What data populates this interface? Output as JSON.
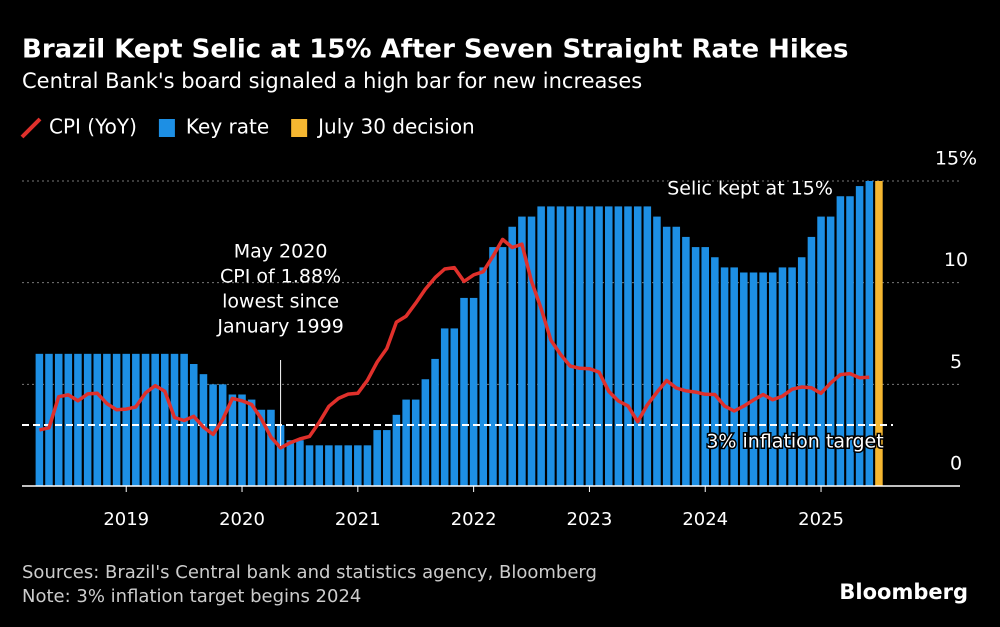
{
  "chart_data": {
    "type": "bar",
    "title": "Brazil Kept Selic at 15% After Seven Straight Rate Hikes",
    "subtitle": "Central Bank's board signaled a high bar for new increases",
    "x": [
      2018.25,
      2018.333,
      2018.417,
      2018.5,
      2018.583,
      2018.667,
      2018.75,
      2018.833,
      2018.917,
      2019,
      2019.083,
      2019.167,
      2019.25,
      2019.333,
      2019.417,
      2019.5,
      2019.583,
      2019.667,
      2019.75,
      2019.833,
      2019.917,
      2020,
      2020.083,
      2020.167,
      2020.25,
      2020.333,
      2020.417,
      2020.5,
      2020.583,
      2020.667,
      2020.75,
      2020.833,
      2020.917,
      2021,
      2021.083,
      2021.167,
      2021.25,
      2021.333,
      2021.417,
      2021.5,
      2021.583,
      2021.667,
      2021.75,
      2021.833,
      2021.917,
      2022,
      2022.083,
      2022.167,
      2022.25,
      2022.333,
      2022.417,
      2022.5,
      2022.583,
      2022.667,
      2022.75,
      2022.833,
      2022.917,
      2023,
      2023.083,
      2023.167,
      2023.25,
      2023.333,
      2023.417,
      2023.5,
      2023.583,
      2023.667,
      2023.75,
      2023.833,
      2023.917,
      2024,
      2024.083,
      2024.167,
      2024.25,
      2024.333,
      2024.417,
      2024.5,
      2024.583,
      2024.667,
      2024.75,
      2024.833,
      2024.917,
      2025,
      2025.083,
      2025.167,
      2025.25,
      2025.333,
      2025.417
    ],
    "series": [
      {
        "name": "CPI (YoY)",
        "type": "line",
        "color": "#e0302b",
        "values": [
          2.76,
          2.86,
          4.39,
          4.48,
          4.19,
          4.53,
          4.56,
          4.05,
          3.75,
          3.78,
          3.89,
          4.58,
          4.94,
          4.66,
          3.37,
          3.22,
          3.43,
          2.89,
          2.54,
          3.27,
          4.31,
          4.19,
          4.01,
          3.3,
          2.4,
          1.88,
          2.13,
          2.31,
          2.44,
          3.14,
          3.92,
          4.31,
          4.52,
          4.56,
          5.2,
          6.1,
          6.76,
          8.06,
          8.35,
          8.99,
          9.68,
          10.25,
          10.67,
          10.74,
          10.06,
          10.38,
          10.54,
          11.3,
          12.13,
          11.73,
          11.89,
          10.07,
          8.73,
          7.17,
          6.47,
          5.9,
          5.79,
          5.77,
          5.6,
          4.65,
          4.18,
          3.94,
          3.16,
          3.99,
          4.61,
          5.19,
          4.82,
          4.68,
          4.62,
          4.51,
          4.5,
          3.93,
          3.69,
          3.93,
          4.23,
          4.5,
          4.24,
          4.42,
          4.76,
          4.87,
          4.83,
          4.56,
          5.06,
          5.48,
          5.53,
          5.32,
          5.35
        ]
      },
      {
        "name": "Key rate",
        "type": "bar",
        "color": "#1d8fe4",
        "values": [
          6.5,
          6.5,
          6.5,
          6.5,
          6.5,
          6.5,
          6.5,
          6.5,
          6.5,
          6.5,
          6.5,
          6.5,
          6.5,
          6.5,
          6.5,
          6.5,
          6,
          5.5,
          5,
          5,
          4.5,
          4.5,
          4.25,
          3.75,
          3.75,
          3,
          2.25,
          2.25,
          2,
          2,
          2,
          2,
          2,
          2,
          2,
          2.75,
          2.75,
          3.5,
          4.25,
          4.25,
          5.25,
          6.25,
          7.75,
          7.75,
          9.25,
          9.25,
          10.75,
          11.75,
          11.75,
          12.75,
          13.25,
          13.25,
          13.75,
          13.75,
          13.75,
          13.75,
          13.75,
          13.75,
          13.75,
          13.75,
          13.75,
          13.75,
          13.75,
          13.75,
          13.25,
          12.75,
          12.75,
          12.25,
          11.75,
          11.75,
          11.25,
          10.75,
          10.75,
          10.5,
          10.5,
          10.5,
          10.5,
          10.75,
          10.75,
          11.25,
          12.25,
          13.25,
          13.25,
          14.25,
          14.25,
          14.75,
          15
        ]
      },
      {
        "name": "July 30 decision",
        "type": "bar",
        "color": "#f5b731",
        "x": [
          2025.5
        ],
        "values": [
          15
        ]
      }
    ],
    "xlim": [
      2018.1,
      2026.2
    ],
    "xticks": [
      2019,
      2020,
      2021,
      2022,
      2023,
      2024,
      2025
    ],
    "ylim": [
      0,
      15
    ],
    "yticks": [
      0,
      5,
      10,
      {
        "value": 15,
        "label": "15%"
      }
    ],
    "grid": true,
    "target": {
      "value": 3,
      "label": "3% inflation target"
    },
    "annotations": [
      {
        "x": 2020.333,
        "lines": [
          "May 2020",
          "CPI of 1.88%",
          "lowest since",
          "January 1999"
        ]
      },
      {
        "x": 2025.5,
        "lines": [
          "Selic kept at 15%"
        ]
      }
    ],
    "source": "Sources: Brazil's Central bank and statistics agency, Bloomberg",
    "note": "Note: 3% inflation target begins 2024",
    "brand": "Bloomberg"
  }
}
